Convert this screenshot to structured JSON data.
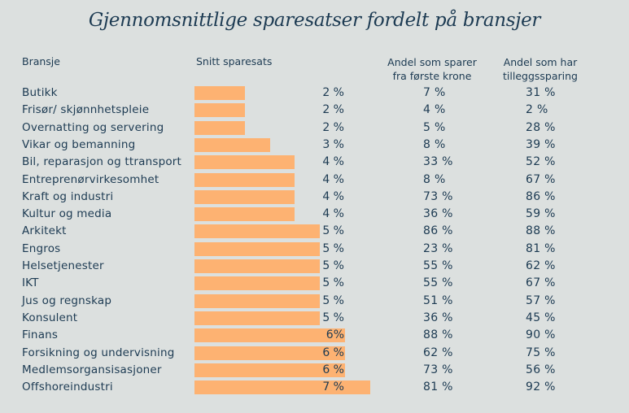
{
  "chart_data": {
    "type": "table",
    "title": "Gjennomsnittlige sparesatser fordelt på bransjer",
    "columns": [
      "Bransje",
      "Snitt sparesats",
      "Andel som sparer fra første krone",
      "Andel som har tilleggssparing"
    ],
    "headers": {
      "bransje": "Bransje",
      "snitt": "Snitt sparesats",
      "andel1_line1": "Andel som sparer",
      "andel1_line2": "fra første krone",
      "andel2_line1": "Andel som har",
      "andel2_line2": "tilleggssparing"
    },
    "bar_color": "#fdb272",
    "text_color": "#1c3a52",
    "background": "#dce0df",
    "xlim": [
      0,
      7
    ],
    "rows": [
      {
        "bransje": "Butikk",
        "snitt": 2,
        "snitt_label": "2 %",
        "andel_forste": "7 %",
        "andel_tillegg": "31 %"
      },
      {
        "bransje": "Frisør/ skjønnhetspleie",
        "snitt": 2,
        "snitt_label": "2 %",
        "andel_forste": "4 %",
        "andel_tillegg": "2 %"
      },
      {
        "bransje": "Overnatting og servering",
        "snitt": 2,
        "snitt_label": "2 %",
        "andel_forste": "5 %",
        "andel_tillegg": "28 %"
      },
      {
        "bransje": "Vikar og bemanning",
        "snitt": 3,
        "snitt_label": "3 %",
        "andel_forste": "8 %",
        "andel_tillegg": "39 %"
      },
      {
        "bransje": "Bil, reparasjon og ttransport",
        "snitt": 4,
        "snitt_label": "4 %",
        "andel_forste": "33 %",
        "andel_tillegg": "52 %"
      },
      {
        "bransje": "Entreprenørvirkesomhet",
        "snitt": 4,
        "snitt_label": "4 %",
        "andel_forste": "8 %",
        "andel_tillegg": "67 %"
      },
      {
        "bransje": "Kraft og industri",
        "snitt": 4,
        "snitt_label": "4 %",
        "andel_forste": "73 %",
        "andel_tillegg": "86 %"
      },
      {
        "bransje": "Kultur og media",
        "snitt": 4,
        "snitt_label": "4 %",
        "andel_forste": "36 %",
        "andel_tillegg": "59 %"
      },
      {
        "bransje": "Arkitekt",
        "snitt": 5,
        "snitt_label": "5 %",
        "andel_forste": "86 %",
        "andel_tillegg": "88 %"
      },
      {
        "bransje": "Engros",
        "snitt": 5,
        "snitt_label": "5 %",
        "andel_forste": "23 %",
        "andel_tillegg": "81 %"
      },
      {
        "bransje": "Helsetjenester",
        "snitt": 5,
        "snitt_label": "5 %",
        "andel_forste": "55 %",
        "andel_tillegg": "62 %"
      },
      {
        "bransje": "IKT",
        "snitt": 5,
        "snitt_label": "5 %",
        "andel_forste": "55 %",
        "andel_tillegg": "67 %"
      },
      {
        "bransje": "Jus og regnskap",
        "snitt": 5,
        "snitt_label": "5 %",
        "andel_forste": "51 %",
        "andel_tillegg": "57 %"
      },
      {
        "bransje": "Konsulent",
        "snitt": 5,
        "snitt_label": "5 %",
        "andel_forste": "36 %",
        "andel_tillegg": "45 %"
      },
      {
        "bransje": "Finans",
        "snitt": 6,
        "snitt_label": "6%",
        "andel_forste": "88 %",
        "andel_tillegg": "90 %"
      },
      {
        "bransje": "Forsikning og undervisning",
        "snitt": 6,
        "snitt_label": "6 %",
        "andel_forste": "62 %",
        "andel_tillegg": "75 %"
      },
      {
        "bransje": "Medlemsorgansisasjoner",
        "snitt": 6,
        "snitt_label": "6 %",
        "andel_forste": "73 %",
        "andel_tillegg": "56 %"
      },
      {
        "bransje": "Offshoreindustri",
        "snitt": 7,
        "snitt_label": "7 %",
        "andel_forste": "81 %",
        "andel_tillegg": "92 %"
      }
    ]
  }
}
